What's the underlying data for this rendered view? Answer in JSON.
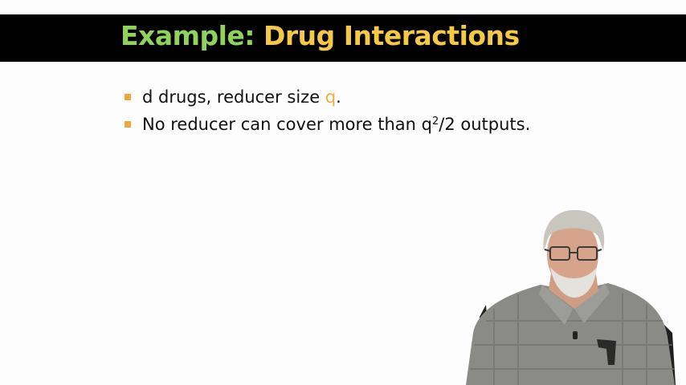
{
  "slide": {
    "title_part1": "Example:",
    "title_part2": "Drug Interactions",
    "bullets": [
      {
        "pre": "d drugs, reducer size ",
        "accent": "q",
        "post": "."
      },
      {
        "pre": "No reducer can cover more than q",
        "sup": "2",
        "post": "/2 outputs."
      }
    ]
  },
  "colors": {
    "title_bar": "#000000",
    "title_green": "#8fd35b",
    "title_yellow": "#f5c846",
    "bullet_mark": "#f2a838",
    "accent_text": "#f2b038"
  }
}
